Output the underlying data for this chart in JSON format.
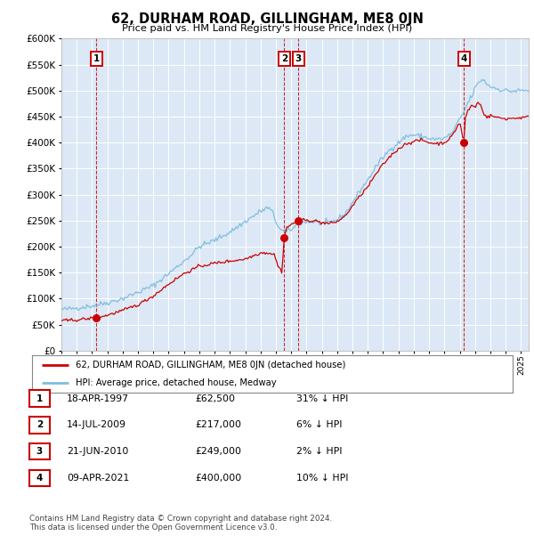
{
  "title": "62, DURHAM ROAD, GILLINGHAM, ME8 0JN",
  "subtitle": "Price paid vs. HM Land Registry's House Price Index (HPI)",
  "background_color": "#ffffff",
  "plot_bg_color": "#dce8f5",
  "hpi_color": "#7fbfdf",
  "price_color": "#cc0000",
  "marker_color": "#cc0000",
  "vline_color": "#cc0000",
  "grid_color": "#ffffff",
  "ylim": [
    0,
    600000
  ],
  "yticks": [
    0,
    50000,
    100000,
    150000,
    200000,
    250000,
    300000,
    350000,
    400000,
    450000,
    500000,
    550000,
    600000
  ],
  "sales": [
    {
      "label": "1",
      "date_num": 1997.29,
      "price": 62500
    },
    {
      "label": "2",
      "date_num": 2009.54,
      "price": 217000
    },
    {
      "label": "3",
      "date_num": 2010.47,
      "price": 249000
    },
    {
      "label": "4",
      "date_num": 2021.27,
      "price": 400000
    }
  ],
  "legend_line1": "62, DURHAM ROAD, GILLINGHAM, ME8 0JN (detached house)",
  "legend_line2": "HPI: Average price, detached house, Medway",
  "table_rows": [
    [
      "1",
      "18-APR-1997",
      "£62,500",
      "31% ↓ HPI"
    ],
    [
      "2",
      "14-JUL-2009",
      "£217,000",
      "6% ↓ HPI"
    ],
    [
      "3",
      "21-JUN-2010",
      "£249,000",
      "2% ↓ HPI"
    ],
    [
      "4",
      "09-APR-2021",
      "£400,000",
      "10% ↓ HPI"
    ]
  ],
  "footnote": "Contains HM Land Registry data © Crown copyright and database right 2024.\nThis data is licensed under the Open Government Licence v3.0.",
  "xmin": 1995.0,
  "xmax": 2025.5
}
